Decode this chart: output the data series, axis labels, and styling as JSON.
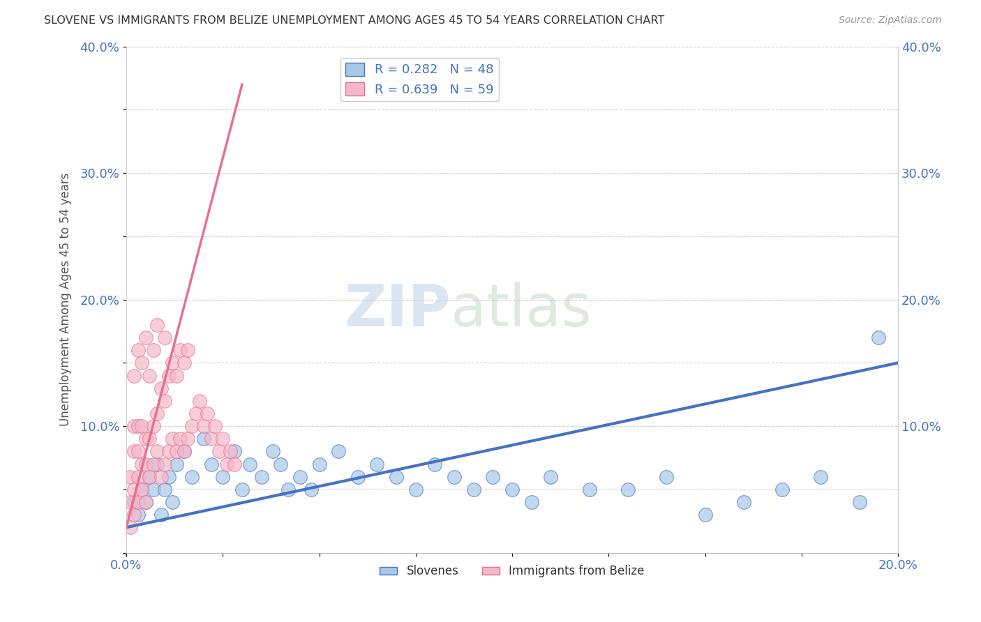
{
  "title": "SLOVENE VS IMMIGRANTS FROM BELIZE UNEMPLOYMENT AMONG AGES 45 TO 54 YEARS CORRELATION CHART",
  "source": "Source: ZipAtlas.com",
  "ylabel": "Unemployment Among Ages 45 to 54 years",
  "xlim": [
    0.0,
    0.2
  ],
  "ylim": [
    0.0,
    0.4
  ],
  "xticks": [
    0.0,
    0.025,
    0.05,
    0.075,
    0.1,
    0.125,
    0.15,
    0.175,
    0.2
  ],
  "xtick_labels": [
    "0.0%",
    "",
    "",
    "",
    "",
    "",
    "",
    "",
    "20.0%"
  ],
  "yticks": [
    0.0,
    0.05,
    0.1,
    0.15,
    0.2,
    0.25,
    0.3,
    0.35,
    0.4
  ],
  "ytick_labels": [
    "",
    "",
    "10.0%",
    "",
    "20.0%",
    "",
    "30.0%",
    "",
    "40.0%"
  ],
  "blue_R": 0.282,
  "blue_N": 48,
  "pink_R": 0.639,
  "pink_N": 59,
  "blue_color": "#a8c8e8",
  "pink_color": "#f4b8c8",
  "blue_line_color": "#4472c4",
  "pink_line_color": "#e87090",
  "legend_label_blue": "Slovenes",
  "legend_label_pink": "Immigrants from Belize",
  "watermark_zip": "ZIP",
  "watermark_atlas": "atlas",
  "blue_scatter_x": [
    0.002,
    0.003,
    0.004,
    0.005,
    0.006,
    0.007,
    0.008,
    0.009,
    0.01,
    0.011,
    0.012,
    0.013,
    0.015,
    0.017,
    0.02,
    0.022,
    0.025,
    0.028,
    0.03,
    0.032,
    0.035,
    0.038,
    0.04,
    0.042,
    0.045,
    0.048,
    0.05,
    0.055,
    0.06,
    0.065,
    0.07,
    0.075,
    0.08,
    0.085,
    0.09,
    0.095,
    0.1,
    0.105,
    0.11,
    0.12,
    0.13,
    0.14,
    0.15,
    0.16,
    0.17,
    0.18,
    0.19,
    0.195
  ],
  "blue_scatter_y": [
    0.04,
    0.03,
    0.05,
    0.04,
    0.06,
    0.05,
    0.07,
    0.03,
    0.05,
    0.06,
    0.04,
    0.07,
    0.08,
    0.06,
    0.09,
    0.07,
    0.06,
    0.08,
    0.05,
    0.07,
    0.06,
    0.08,
    0.07,
    0.05,
    0.06,
    0.05,
    0.07,
    0.08,
    0.06,
    0.07,
    0.06,
    0.05,
    0.07,
    0.06,
    0.05,
    0.06,
    0.05,
    0.04,
    0.06,
    0.05,
    0.05,
    0.06,
    0.03,
    0.04,
    0.05,
    0.06,
    0.04,
    0.17
  ],
  "pink_scatter_x": [
    0.001,
    0.001,
    0.001,
    0.002,
    0.002,
    0.002,
    0.002,
    0.002,
    0.003,
    0.003,
    0.003,
    0.003,
    0.003,
    0.004,
    0.004,
    0.004,
    0.004,
    0.005,
    0.005,
    0.005,
    0.005,
    0.006,
    0.006,
    0.006,
    0.007,
    0.007,
    0.007,
    0.008,
    0.008,
    0.008,
    0.009,
    0.009,
    0.01,
    0.01,
    0.01,
    0.011,
    0.011,
    0.012,
    0.012,
    0.013,
    0.013,
    0.014,
    0.014,
    0.015,
    0.015,
    0.016,
    0.016,
    0.017,
    0.018,
    0.019,
    0.02,
    0.021,
    0.022,
    0.023,
    0.024,
    0.025,
    0.026,
    0.027,
    0.028
  ],
  "pink_scatter_y": [
    0.02,
    0.04,
    0.06,
    0.03,
    0.05,
    0.08,
    0.1,
    0.14,
    0.04,
    0.06,
    0.08,
    0.1,
    0.16,
    0.05,
    0.07,
    0.1,
    0.15,
    0.04,
    0.07,
    0.09,
    0.17,
    0.06,
    0.09,
    0.14,
    0.07,
    0.1,
    0.16,
    0.08,
    0.11,
    0.18,
    0.06,
    0.13,
    0.07,
    0.12,
    0.17,
    0.08,
    0.14,
    0.09,
    0.15,
    0.08,
    0.14,
    0.09,
    0.16,
    0.08,
    0.15,
    0.09,
    0.16,
    0.1,
    0.11,
    0.12,
    0.1,
    0.11,
    0.09,
    0.1,
    0.08,
    0.09,
    0.07,
    0.08,
    0.07
  ],
  "blue_line_x": [
    0.0,
    0.2
  ],
  "blue_line_y": [
    0.02,
    0.15
  ],
  "pink_line_x": [
    0.0,
    0.03
  ],
  "pink_line_y": [
    0.02,
    0.37
  ]
}
